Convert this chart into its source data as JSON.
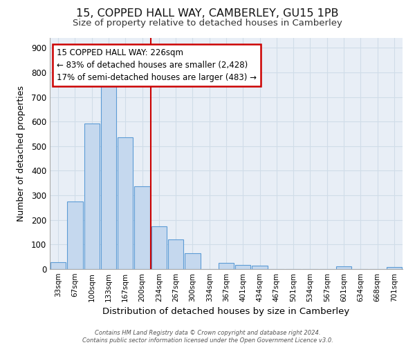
{
  "title": "15, COPPED HALL WAY, CAMBERLEY, GU15 1PB",
  "subtitle": "Size of property relative to detached houses in Camberley",
  "xlabel": "Distribution of detached houses by size in Camberley",
  "ylabel": "Number of detached properties",
  "bar_color": "#c5d8ee",
  "bar_edge_color": "#5b9bd5",
  "grid_color": "#d0dce8",
  "fig_bg_color": "#ffffff",
  "plot_bg_color": "#e8eef6",
  "vline_color": "#cc0000",
  "annotation_text_line1": "15 COPPED HALL WAY: 226sqm",
  "annotation_text_line2": "← 83% of detached houses are smaller (2,428)",
  "annotation_text_line3": "17% of semi-detached houses are larger (483) →",
  "annotation_box_color": "#ffffff",
  "annotation_edge_color": "#cc0000",
  "footer_line1": "Contains HM Land Registry data © Crown copyright and database right 2024.",
  "footer_line2": "Contains public sector information licensed under the Open Government Licence v3.0.",
  "categories": [
    "33sqm",
    "67sqm",
    "100sqm",
    "133sqm",
    "167sqm",
    "200sqm",
    "234sqm",
    "267sqm",
    "300sqm",
    "334sqm",
    "367sqm",
    "401sqm",
    "434sqm",
    "467sqm",
    "501sqm",
    "534sqm",
    "567sqm",
    "601sqm",
    "634sqm",
    "668sqm",
    "701sqm"
  ],
  "values": [
    27,
    275,
    593,
    743,
    537,
    338,
    175,
    120,
    65,
    0,
    25,
    18,
    15,
    0,
    0,
    0,
    0,
    10,
    0,
    0,
    8
  ],
  "ylim": [
    0,
    940
  ],
  "yticks": [
    0,
    100,
    200,
    300,
    400,
    500,
    600,
    700,
    800,
    900
  ],
  "vline_pos": 6.0
}
